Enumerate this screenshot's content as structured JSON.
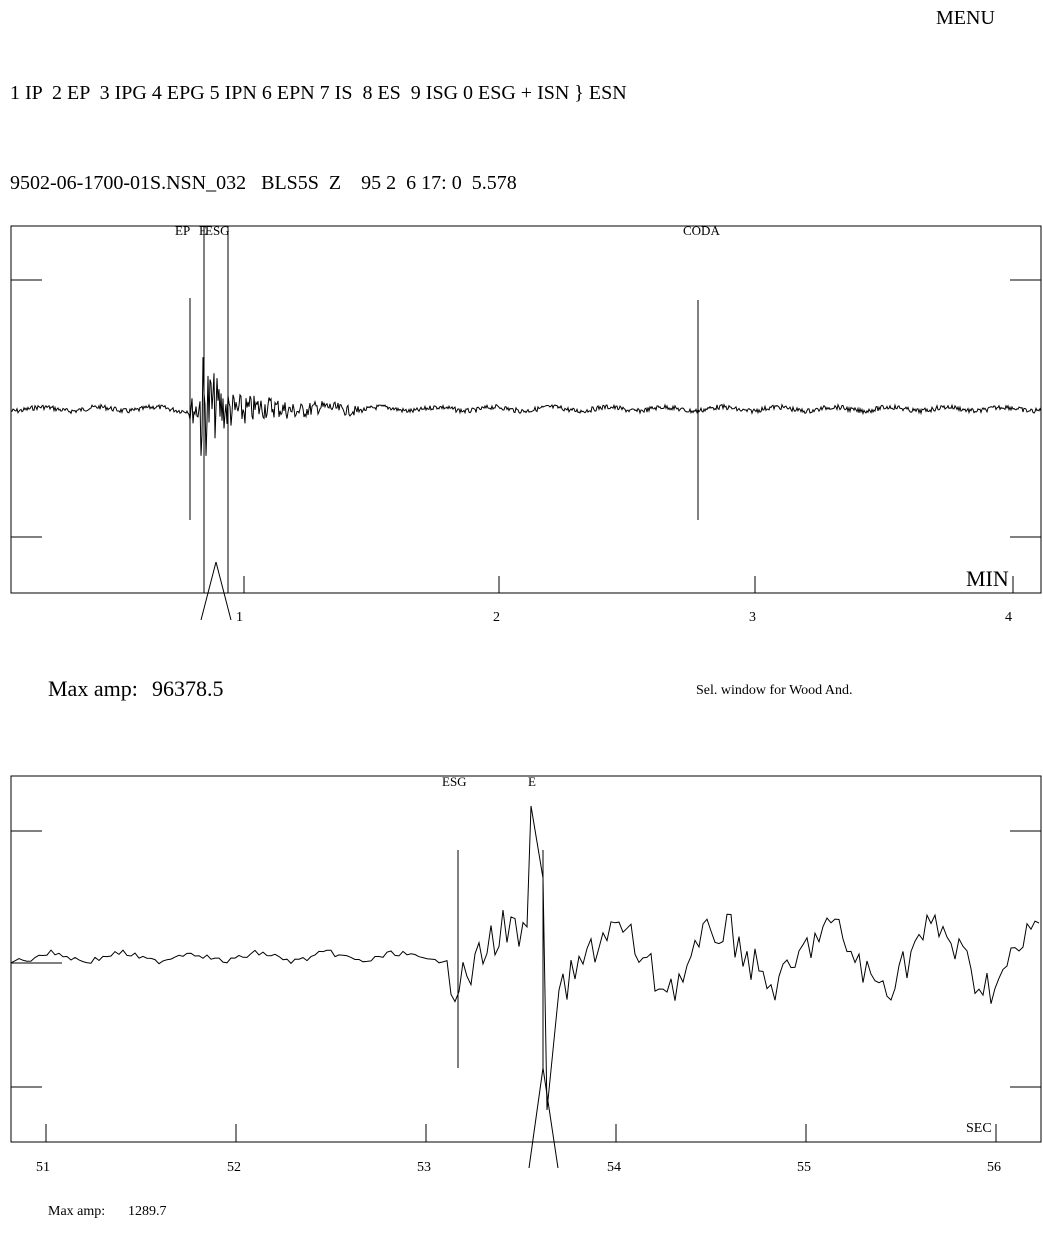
{
  "menu_label": "MENU",
  "phase_keys": "1 IP  2 EP  3 IPG 4 EPG 5 IPN 6 EPN 7 IS  8 ES  9 ISG 0 ESG + ISN } ESN",
  "trace_header": "9502-06-1700-01S.NSN_032   BLS5S  Z    95 2  6 17: 0  5.578",
  "top_panel": {
    "unit_label": "MIN",
    "ticks": [
      "1",
      "2",
      "3",
      "4"
    ],
    "picks": [
      "EP",
      "E",
      "ESG",
      "CODA"
    ],
    "max_amp_label": "Max amp:",
    "max_amp_value": "96378.5",
    "window_note": "Sel. window for Wood And."
  },
  "bottom_panel": {
    "unit_label": "SEC",
    "ticks": [
      "51",
      "52",
      "53",
      "54",
      "55",
      "56"
    ],
    "picks": [
      "ESG",
      "E"
    ],
    "max_amp_label": "Max amp:",
    "max_amp_value": "1289.7"
  }
}
